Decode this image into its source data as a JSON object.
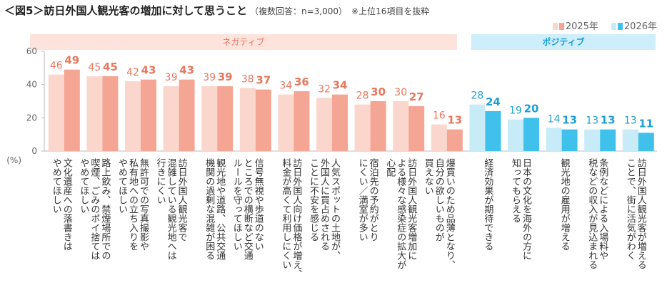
{
  "title": "＜図5＞訪日外国人観光客の増加に対して思うこと",
  "subtitle": "（複数回答：n=3,000）　※上位16項目を抜粋",
  "legend": [
    "2025年",
    "2026年"
  ],
  "groups": {
    "negative": "ネガティブ",
    "positive": "ポジティブ"
  },
  "colors": {
    "neg2025": "#fbd6cd",
    "neg2026": "#f4a593",
    "negText": "#e8775e",
    "pos2025": "#c8ebf8",
    "pos2026": "#40c1ec",
    "posText": "#1d9fd2"
  },
  "chart_data": {
    "type": "bar",
    "ylabel": "(%)",
    "ylim": [
      0,
      60
    ],
    "yticks": [
      0,
      20,
      40,
      60
    ],
    "categories": [
      "文化遺産への落書きは\nやめてほしい",
      "路上飲み、禁煙場所での\n喫煙、ごみのポイ捨ては\nやめてほしい",
      "無許可での写真撮影や\n私有地への立ち入りを\nやめてほしい",
      "訪日外国人観光客で\n混雑している観光地へは\n行きにくい",
      "観光地や道路、公共交通\n機関の過剰な混雑が困る",
      "信号無視や歩道のない\nところでの横断など交通\nルールを守ってほしい",
      "訪日外国人向け価格が増え、\n料金が高くて利用しにくい",
      "人気スポットの土地が、\n外国人に買占めされる\nことに不安を感じる",
      "宿泊先の予約がとり\nにくい／満室が多い",
      "訪日外国人観光客増加に\nよる様々な感染症の拡大が\n心配",
      "爆買いのため品薄となり、\n自分の欲しいものが\n買えない",
      "経済効果が期待できる",
      "日本の文化を海外の方に\n知ってもらえる",
      "観光地の雇用が増える",
      "条例などによる入場料や\n税などの収入が見込まれる",
      "訪日外国人観光客が増える\nことで、街に活気がわく"
    ],
    "group": [
      "negative",
      "negative",
      "negative",
      "negative",
      "negative",
      "negative",
      "negative",
      "negative",
      "negative",
      "negative",
      "negative",
      "positive",
      "positive",
      "positive",
      "positive",
      "positive"
    ],
    "series": [
      {
        "name": "2025年",
        "values": [
          46,
          45,
          42,
          39,
          39,
          38,
          34,
          32,
          28,
          30,
          16,
          28,
          19,
          14,
          13,
          13
        ]
      },
      {
        "name": "2026年",
        "values": [
          49,
          45,
          43,
          43,
          39,
          37,
          36,
          34,
          30,
          27,
          13,
          24,
          20,
          13,
          13,
          11
        ]
      }
    ]
  }
}
